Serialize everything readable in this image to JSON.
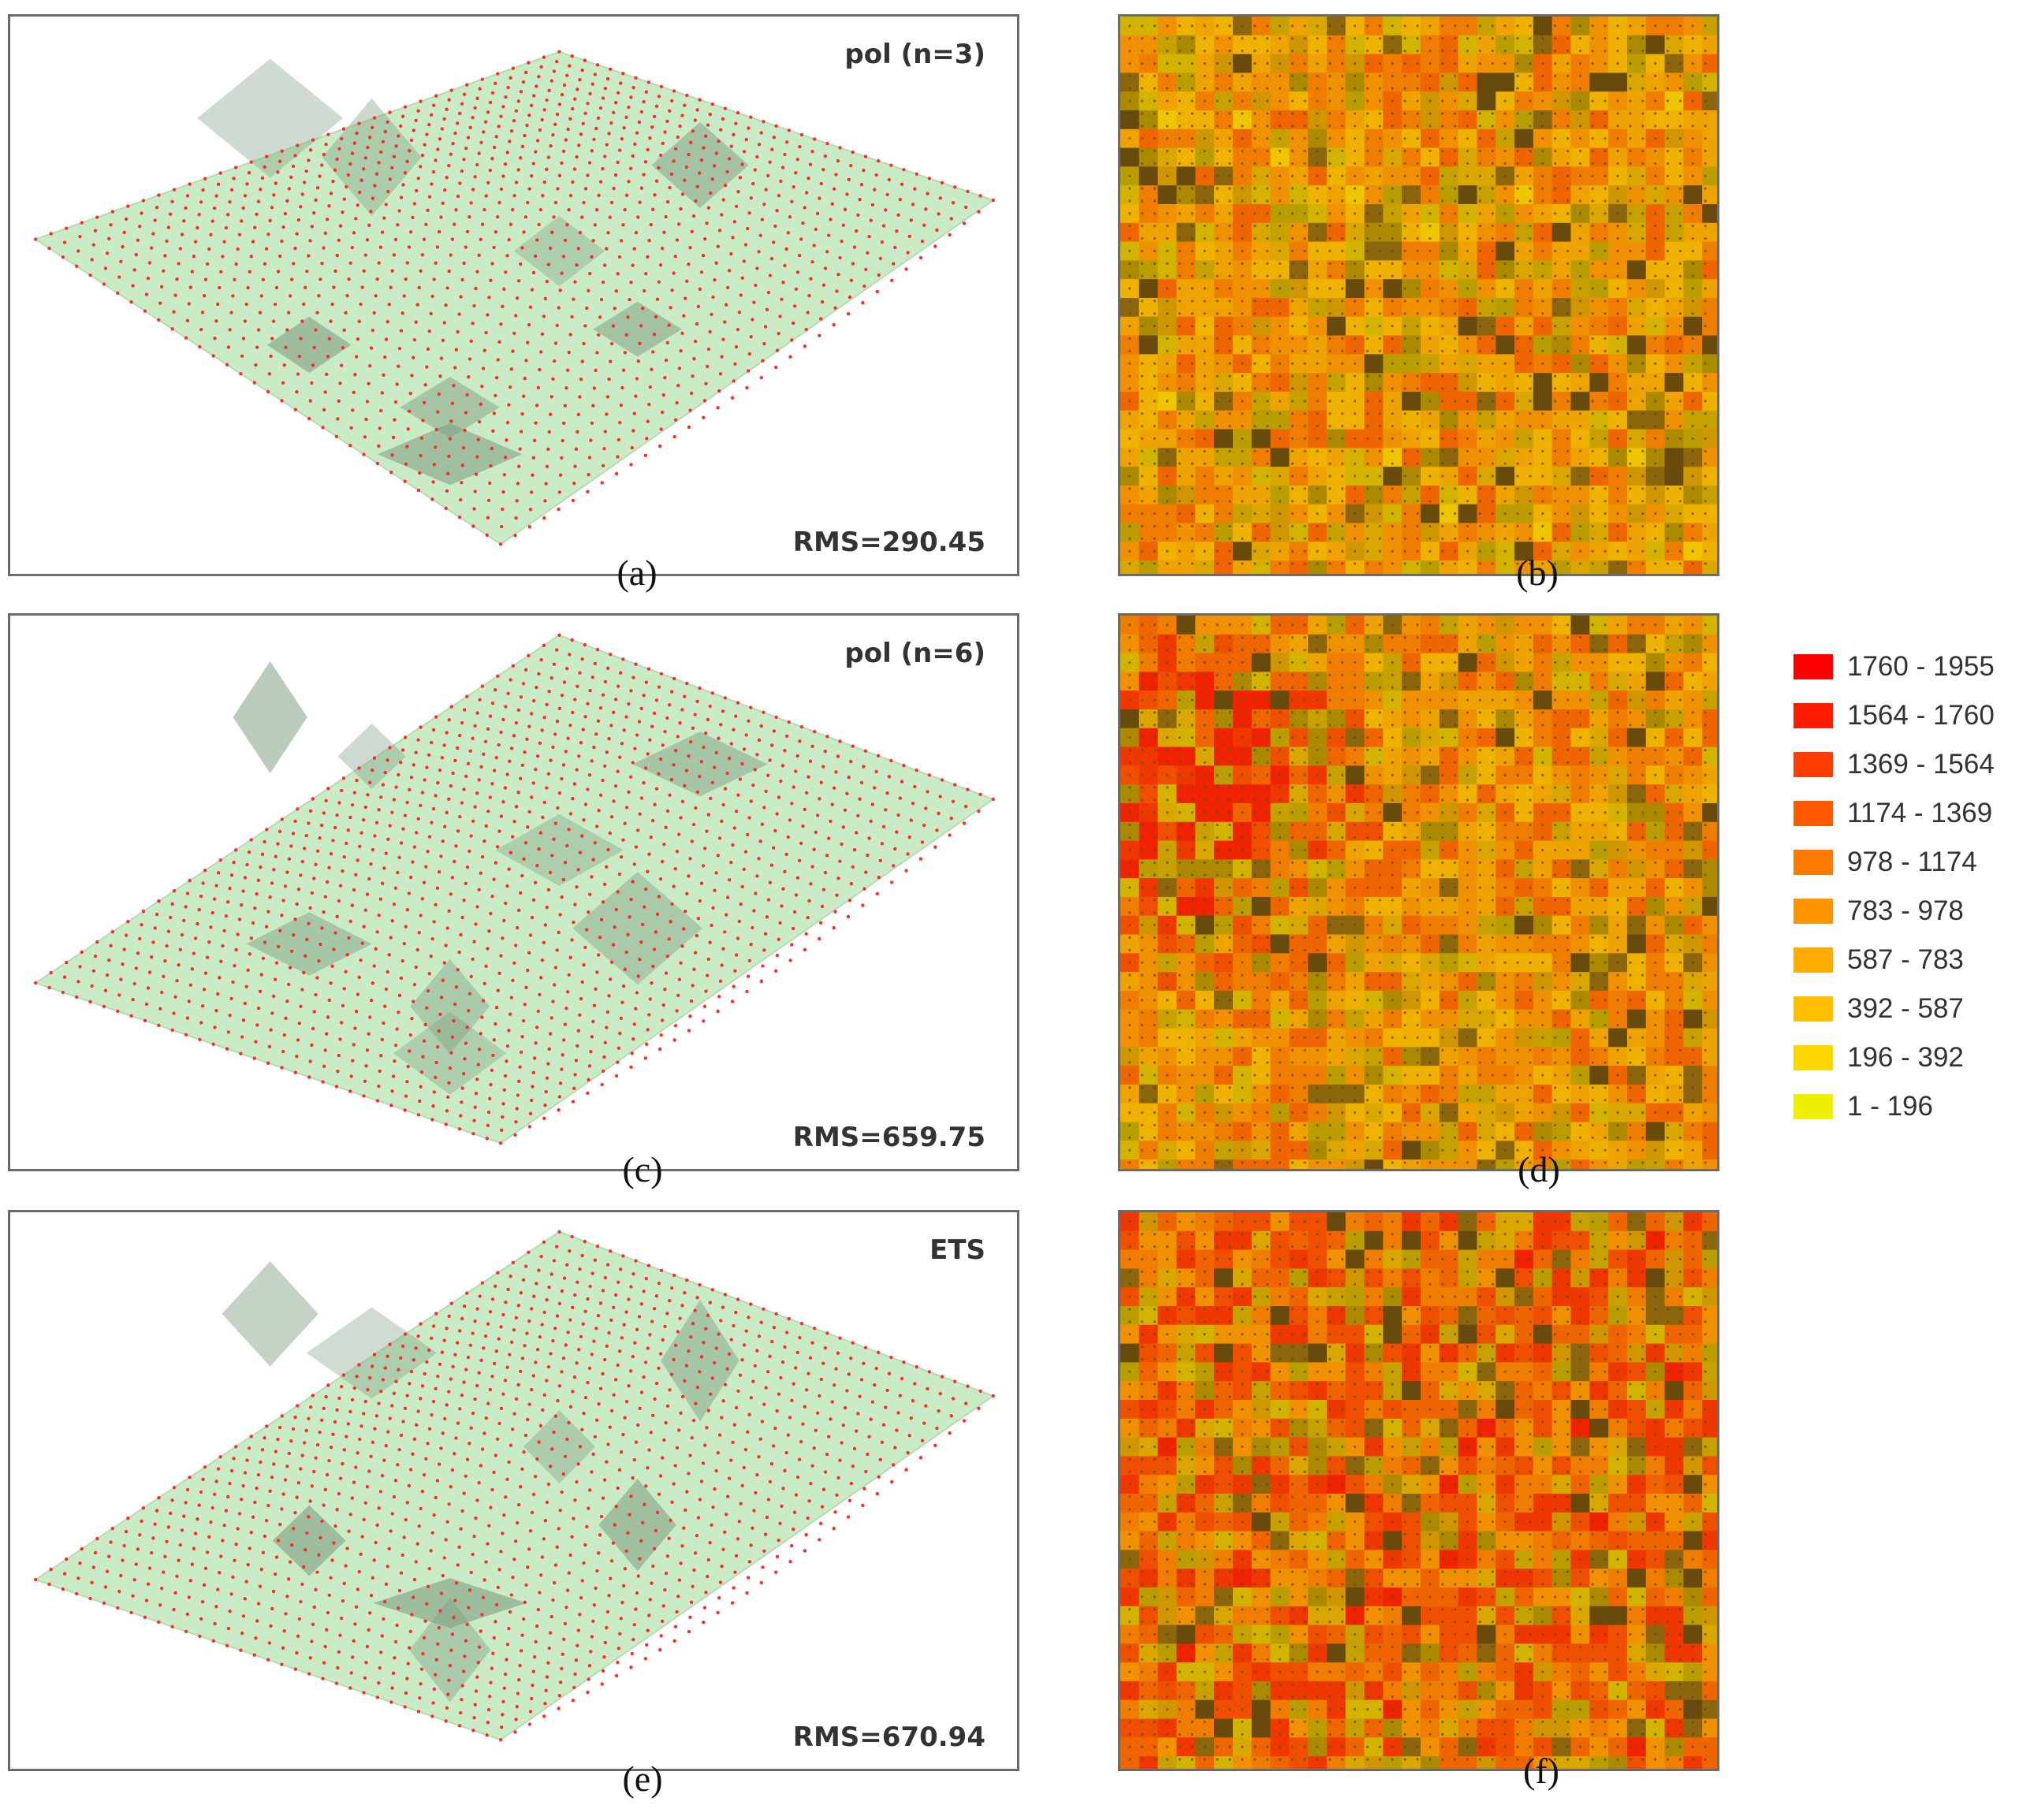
{
  "panels": [
    {
      "id": "a",
      "method": "pol (n=3)",
      "rms": "RMS=290.45",
      "caption": "(a)"
    },
    {
      "id": "b",
      "caption": "(b)"
    },
    {
      "id": "c",
      "method": "pol (n=6)",
      "rms": "RMS=659.75",
      "caption": "(c)"
    },
    {
      "id": "d",
      "caption": "(d)"
    },
    {
      "id": "e",
      "method": "ETS",
      "rms": "RMS=670.94",
      "caption": "(e)"
    },
    {
      "id": "f",
      "caption": "(f)"
    }
  ],
  "legend": [
    {
      "label": "1760 - 1955",
      "color": "#ff0000"
    },
    {
      "label": "1564 - 1760",
      "color": "#ff1c00"
    },
    {
      "label": "1369 - 1564",
      "color": "#ff3d00"
    },
    {
      "label": "1174 - 1369",
      "color": "#ff5a00"
    },
    {
      "label": "978 - 1174",
      "color": "#ff7a00"
    },
    {
      "label": "783 - 978",
      "color": "#ff9300"
    },
    {
      "label": "587 - 783",
      "color": "#ffab00"
    },
    {
      "label": "392 - 587",
      "color": "#ffbf00"
    },
    {
      "label": "196 - 392",
      "color": "#ffd800"
    },
    {
      "label": "1 - 196",
      "color": "#eef000"
    }
  ],
  "colors": {
    "surface": "#c9ebc5",
    "surface_shadow": "#7e9c80",
    "points": "#ff2a2a",
    "frame": "#6b6b6b",
    "map_grid_dot": "#6b4a1e"
  }
}
